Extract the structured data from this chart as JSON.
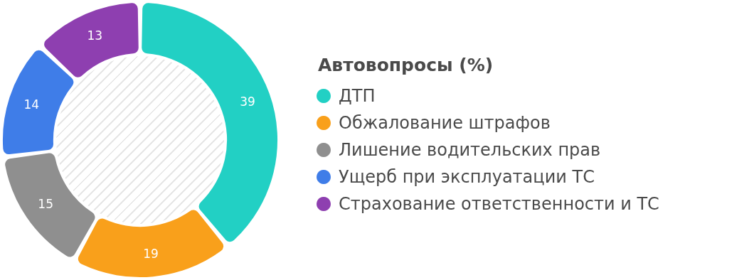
{
  "chart_data": {
    "type": "donut",
    "legend_title": "Автовопросы (%)",
    "categories": [
      "ДТП",
      "Обжалование штрафов",
      "Лишение водительских прав",
      "Ущерб при эксплуатации ТС",
      "Страхование ответственности и ТС"
    ],
    "values": [
      39,
      19,
      15,
      14,
      13
    ],
    "colors": [
      "#22d0c4",
      "#f9a01b",
      "#8f8f8f",
      "#3f7de8",
      "#8e3fb0"
    ],
    "data_labels": true,
    "legend": "right"
  }
}
